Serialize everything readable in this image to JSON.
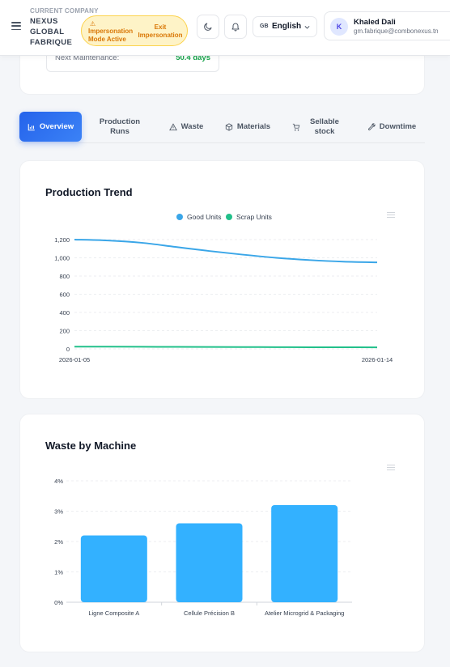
{
  "header": {
    "company_label": "CURRENT COMPANY",
    "company_name": "NEXUS GLOBAL FABRIQUE",
    "impersonation_text": "Impersonation Mode Active",
    "exit_label": "Exit Impersonation",
    "language_flag": "GB",
    "language": "English",
    "user_initial": "K",
    "user_name": "Khaled Dali",
    "user_email": "gm.fabrique@combonexus.tn"
  },
  "maintenance": {
    "label": "Next Maintenance:",
    "value": "50.4 days"
  },
  "tabs": [
    {
      "label": "Overview",
      "icon": "chart-icon",
      "active": true
    },
    {
      "label": "Production Runs",
      "icon": "",
      "active": false
    },
    {
      "label": "Waste",
      "icon": "warning-icon",
      "active": false
    },
    {
      "label": "Materials",
      "icon": "box-icon",
      "active": false
    },
    {
      "label": "Sellable stock",
      "icon": "cart-icon",
      "active": false
    },
    {
      "label": "Downtime",
      "icon": "wrench-icon",
      "active": false
    }
  ],
  "production_trend": {
    "title": "Production Trend",
    "chart_data": {
      "type": "line",
      "x": [
        "2026-01-05",
        "2026-01-06",
        "2026-01-07",
        "2026-01-08",
        "2026-01-09",
        "2026-01-10",
        "2026-01-11",
        "2026-01-12",
        "2026-01-13",
        "2026-01-14"
      ],
      "series": [
        {
          "name": "Good Units",
          "color": "#3aa6e8",
          "values": [
            1200,
            1190,
            1165,
            1120,
            1075,
            1035,
            1000,
            975,
            958,
            950
          ]
        },
        {
          "name": "Scrap Units",
          "color": "#22c08a",
          "values": [
            25,
            24,
            23,
            22,
            21,
            20,
            19,
            18,
            18,
            17
          ]
        }
      ],
      "yticks": [
        0,
        200,
        400,
        600,
        800,
        "1,000",
        "1,200"
      ],
      "xtick_labels": [
        "2026-01-05",
        "2026-01-14"
      ],
      "ylim": [
        0,
        1200
      ],
      "legend": "top-center",
      "grid": true
    }
  },
  "waste_by_machine": {
    "title": "Waste by Machine",
    "chart_data": {
      "type": "bar",
      "categories": [
        "Ligne Composite A",
        "Cellule Précision B",
        "Atelier Microgrid & Packaging"
      ],
      "values": [
        2.2,
        2.6,
        3.2
      ],
      "yticks": [
        "0%",
        "1%",
        "2%",
        "3%",
        "4%"
      ],
      "ylim": [
        0,
        4
      ],
      "color": "#33b1ff",
      "grid": true
    }
  }
}
